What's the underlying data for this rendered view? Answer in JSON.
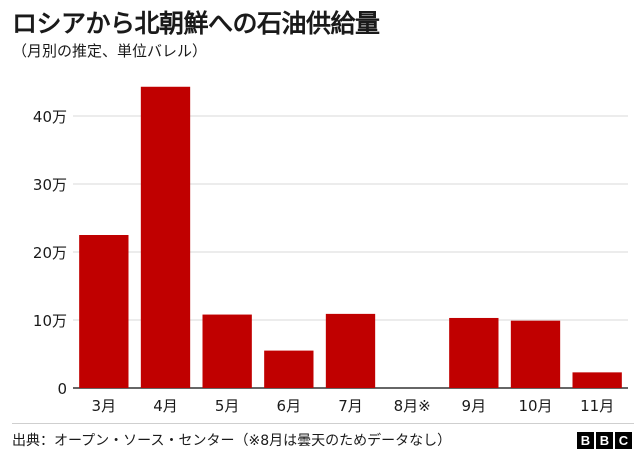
{
  "header": {
    "title": "ロシアから北朝鮮への石油供給量",
    "subtitle": "（月別の推定、単位バレル）"
  },
  "footer": {
    "source": "出典：オープン・ソース・センター（※8月は曇天のためデータなし）",
    "logo_letters": [
      "B",
      "B",
      "C"
    ]
  },
  "chart_data": {
    "type": "bar",
    "title": "ロシアから北朝鮮への石油供給量",
    "subtitle": "（月別の推定、単位バレル）",
    "categories": [
      "3月",
      "4月",
      "5月",
      "6月",
      "7月",
      "8月※",
      "9月",
      "10月",
      "11月"
    ],
    "values": [
      225000,
      443000,
      108000,
      55000,
      109000,
      null,
      103000,
      99000,
      23000
    ],
    "ylim": [
      0,
      450000
    ],
    "yticks": [
      0,
      100000,
      200000,
      300000,
      400000
    ],
    "ytick_labels": [
      "0",
      "10万",
      "20万",
      "30万",
      "40万"
    ],
    "xlabel": "",
    "ylabel": "",
    "grid": true,
    "bar_color": "#c00000",
    "grid_color": "#d9d9d9",
    "axis_color": "#333333"
  }
}
